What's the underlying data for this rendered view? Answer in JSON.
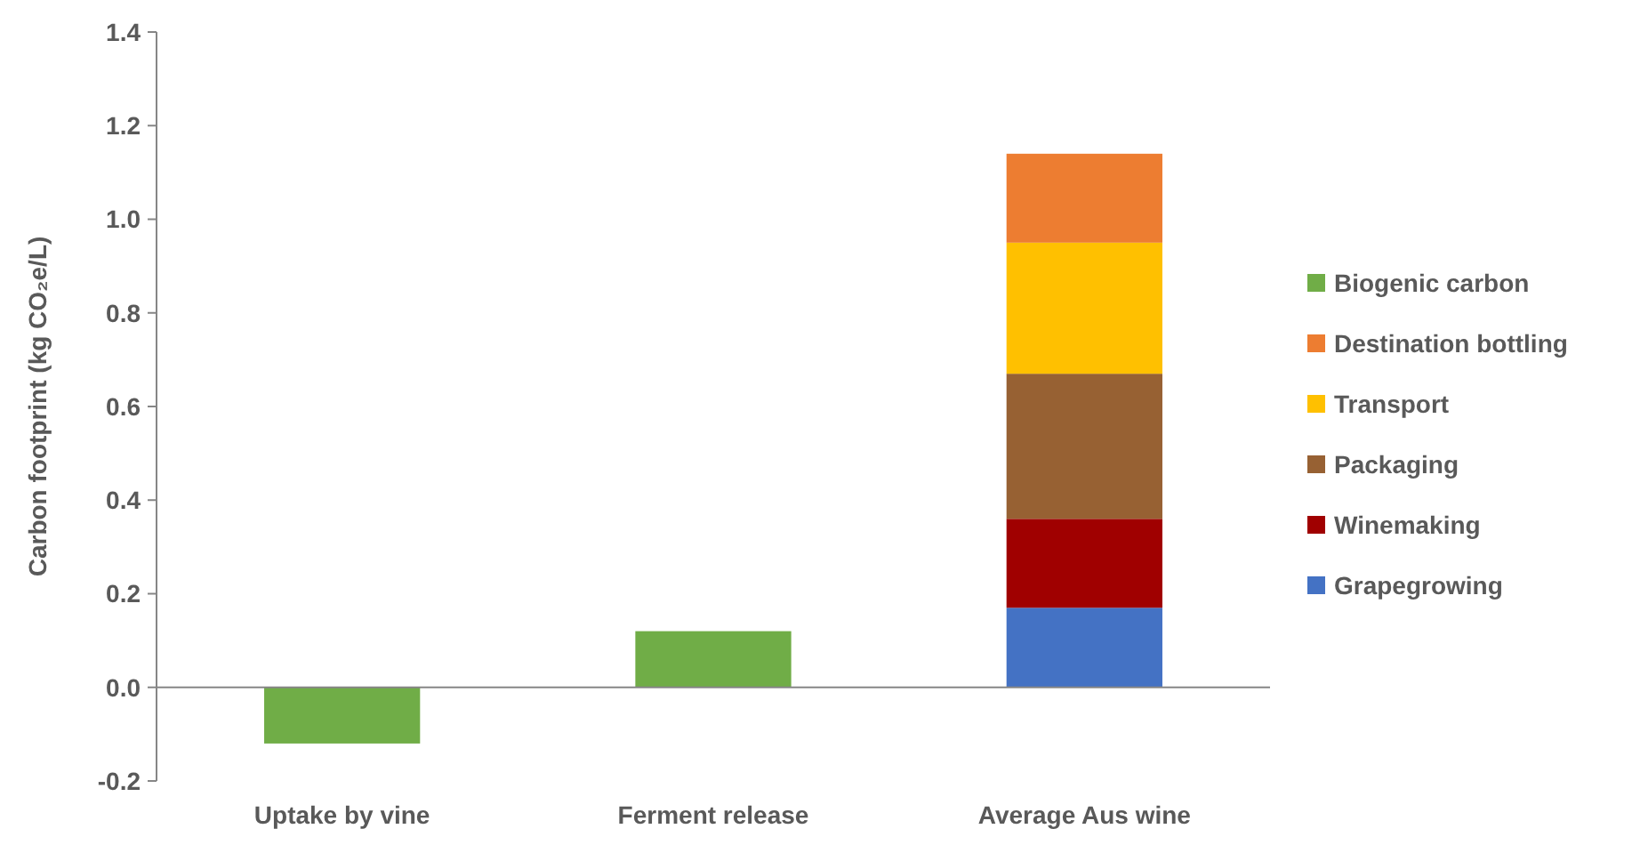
{
  "chart_data": {
    "type": "bar",
    "stacked": true,
    "ylabel": "Carbon footprint (kg CO₂e/L)",
    "categories": [
      "Uptake by vine",
      "Ferment release",
      "Average Aus wine"
    ],
    "series": [
      {
        "name": "Grapegrowing",
        "color": "#4472c4",
        "values": [
          null,
          null,
          0.17
        ]
      },
      {
        "name": "Winemaking",
        "color": "#a00000",
        "values": [
          null,
          null,
          0.19
        ]
      },
      {
        "name": "Packaging",
        "color": "#976133",
        "values": [
          null,
          null,
          0.31
        ]
      },
      {
        "name": "Transport",
        "color": "#ffc000",
        "values": [
          null,
          null,
          0.28
        ]
      },
      {
        "name": "Destination bottling",
        "color": "#ed7d31",
        "values": [
          null,
          null,
          0.19
        ]
      },
      {
        "name": "Biogenic carbon",
        "color": "#70ad47",
        "values": [
          -0.12,
          0.12,
          null
        ]
      }
    ],
    "ylim": [
      -0.2,
      1.4
    ],
    "yticks": [
      {
        "value": -0.2,
        "label": "-0.2"
      },
      {
        "value": 0,
        "label": "0.0"
      },
      {
        "value": 0.2,
        "label": "0.2"
      },
      {
        "value": 0.4,
        "label": "0.4"
      },
      {
        "value": 0.6,
        "label": "0.6"
      },
      {
        "value": 0.8,
        "label": "0.8"
      },
      {
        "value": 1,
        "label": "1.0"
      },
      {
        "value": 1.2,
        "label": "1.2"
      },
      {
        "value": 1.4,
        "label": "1.4"
      }
    ],
    "legend": "right"
  }
}
